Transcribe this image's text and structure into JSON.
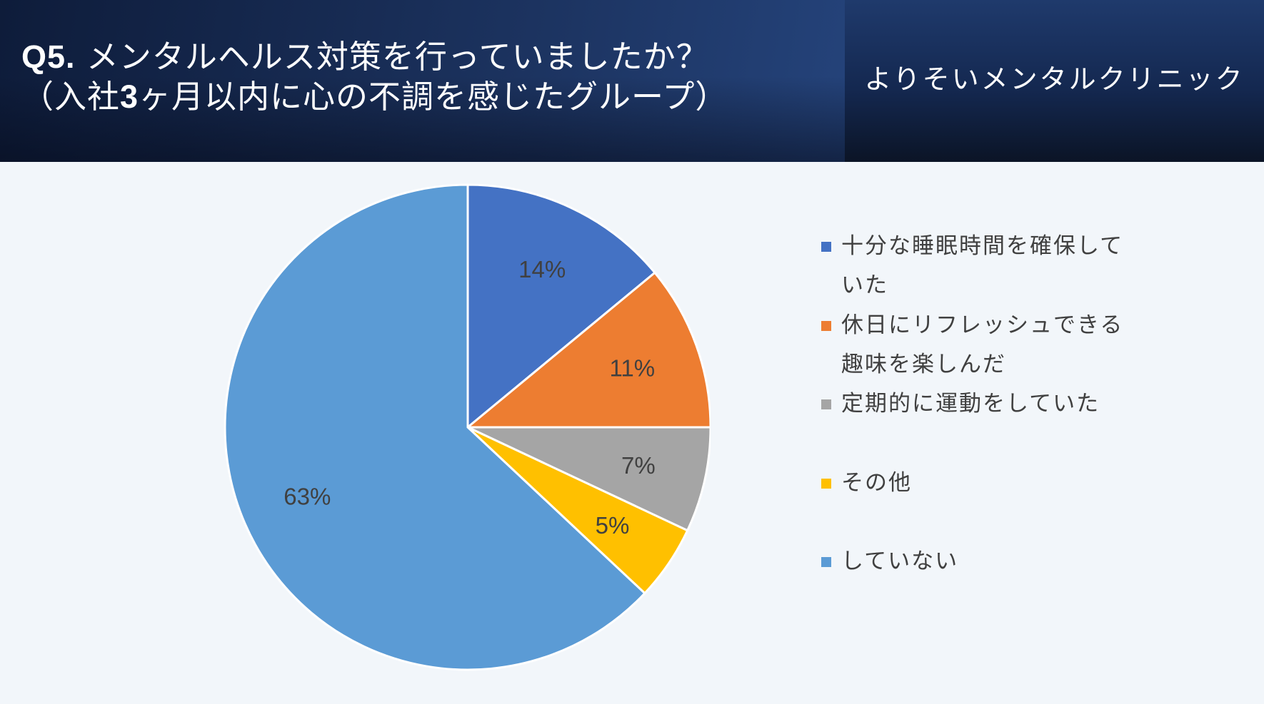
{
  "header": {
    "question_no": "Q5.",
    "question_text": "メンタルヘルス対策を行っていましたか？",
    "subtitle_open": "（入社",
    "subtitle_num": "3",
    "subtitle_rest": "ヶ月以内に心の不調を感じたグループ）",
    "brand": "よりそいメンタルクリニック"
  },
  "chart_data": {
    "type": "pie",
    "title": "Q5. メンタルヘルス対策を行っていましたか？（入社3ヶ月以内に心の不調を感じたグループ）",
    "categories": [
      "十分な睡眠時間を確保していた",
      "休日にリフレッシュできる趣味を楽しんだ",
      "定期的に運動をしていた",
      "その他",
      "していない"
    ],
    "values": [
      14,
      11,
      7,
      5,
      63
    ],
    "labels": [
      "14%",
      "11%",
      "7%",
      "5%",
      "63%"
    ],
    "colors": [
      "#4472c4",
      "#ed7d31",
      "#a5a5a5",
      "#ffc000",
      "#5b9bd5"
    ],
    "legend_position": "right",
    "legend_lines": [
      [
        "十分な睡眠時間を確保して",
        "いた"
      ],
      [
        "休日にリフレッシュできる",
        "趣味を楽しんだ"
      ],
      [
        "定期的に運動をしていた"
      ],
      [
        "その他"
      ],
      [
        "していない"
      ]
    ]
  }
}
